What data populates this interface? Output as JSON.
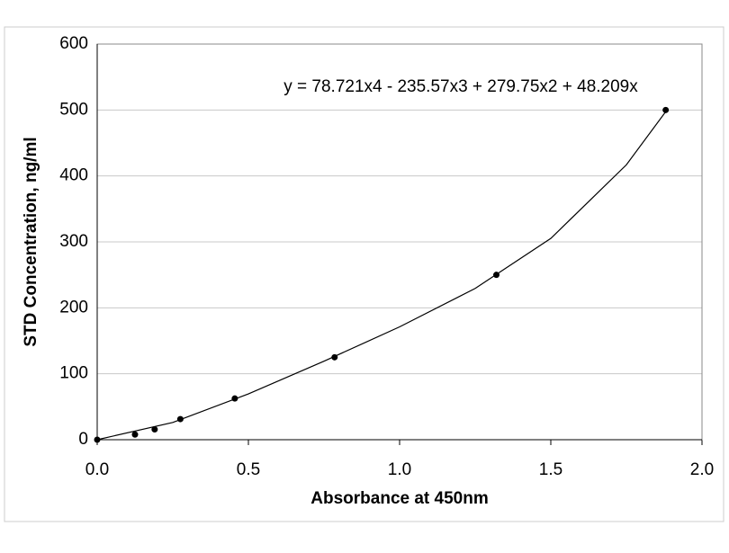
{
  "chart_data": {
    "type": "scatter",
    "x_label": "Absorbance at 450nm",
    "y_label": "STD Concentration, ng/ml",
    "annotation": "y = 78.721x4 - 235.57x3 + 279.75x2 + 48.209x",
    "x": [
      0,
      0.125,
      0.19,
      0.275,
      0.455,
      0.785,
      1.32,
      1.88
    ],
    "values": [
      0,
      7.8,
      15.6,
      31.25,
      62.5,
      125,
      250,
      500
    ],
    "color": "#000000",
    "trendline": {
      "x": [
        0,
        0.25,
        0.5,
        0.75,
        1.0,
        1.25,
        1.5,
        1.75,
        1.88
      ],
      "y": [
        0,
        26.16,
        69.51,
        119.05,
        171.11,
        229.46,
        305.23,
        416.92,
        497.47
      ],
      "color": "#000000"
    },
    "xlim": [
      0,
      2
    ],
    "ylim": [
      0,
      600
    ],
    "xticks": [
      {
        "value": 0,
        "label": "0.0"
      },
      0.5,
      {
        "value": 1,
        "label": "1.0"
      },
      1.5,
      {
        "value": 2,
        "label": "2.0"
      }
    ],
    "yticks": [
      0,
      100,
      200,
      300,
      400,
      500,
      600
    ],
    "grid": true
  }
}
